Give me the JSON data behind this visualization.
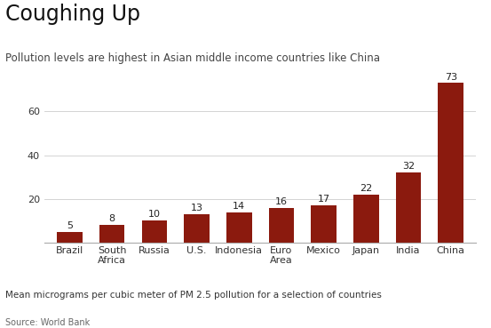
{
  "title": "Coughing Up",
  "subtitle": "Pollution levels are highest in Asian middle income countries like China",
  "footer_label": "Mean micrograms per cubic meter of PM 2.5 pollution for a selection of countries",
  "source": "Source: World Bank",
  "categories": [
    "Brazil",
    "South\nAfrica",
    "Russia",
    "U.S.",
    "Indonesia",
    "Euro\nArea",
    "Mexico",
    "Japan",
    "India",
    "China"
  ],
  "values": [
    5,
    8,
    10,
    13,
    14,
    16,
    17,
    22,
    32,
    73
  ],
  "bar_color": "#8B1A0E",
  "yticks": [
    20,
    40,
    60
  ],
  "ylim": [
    0,
    78
  ],
  "background_color": "#ffffff",
  "title_fontsize": 17,
  "subtitle_fontsize": 8.5,
  "tick_fontsize": 8,
  "value_label_fontsize": 8,
  "footer_fontsize": 7.5,
  "source_fontsize": 7
}
